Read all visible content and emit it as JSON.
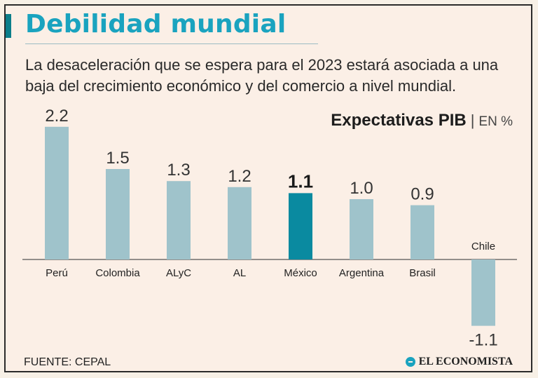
{
  "header": {
    "title": "Debilidad mundial",
    "subtitle": "La desaceleración que se espera para el 2023 estará asociada a una baja del crecimiento económico y del comercio a nivel mundial."
  },
  "chart_header": {
    "title": "Expectativas PIB",
    "separator": "|",
    "unit": "EN %"
  },
  "footer": {
    "source": "FUENTE: CEPAL",
    "logo_text": "EL ECONOMISTA"
  },
  "colors": {
    "bar": "#9fc3cb",
    "highlight": "#0a8aa0",
    "title": "#1aa3bf",
    "axis": "#555555"
  },
  "chart_data": {
    "type": "bar",
    "title": "Expectativas PIB",
    "ylabel": "EN %",
    "xlabel": "",
    "categories": [
      "Perú",
      "Colombia",
      "ALyC",
      "AL",
      "México",
      "Argentina",
      "Brasil",
      "Chile"
    ],
    "values": [
      2.2,
      1.5,
      1.3,
      1.2,
      1.1,
      1.0,
      0.9,
      -1.1
    ],
    "value_labels": [
      "2.2",
      "1.5",
      "1.3",
      "1.2",
      "1.1",
      "1.0",
      "0.9",
      "-1.1"
    ],
    "highlight": "México",
    "ylim": [
      -1.1,
      2.2
    ],
    "grid": false
  }
}
